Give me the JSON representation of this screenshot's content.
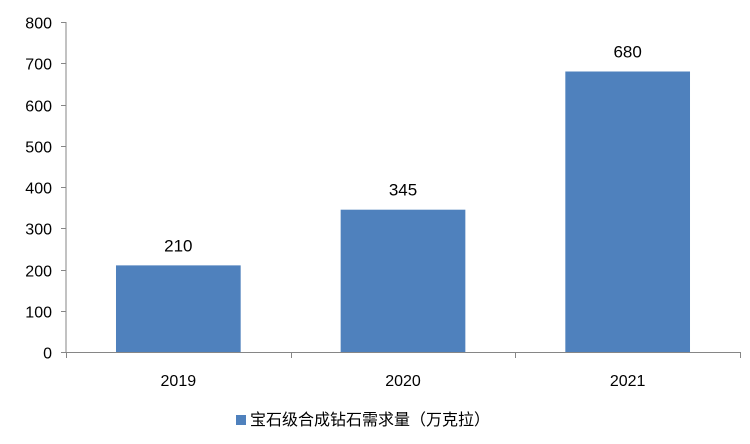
{
  "chart_data": {
    "type": "bar",
    "categories": [
      "2019",
      "2020",
      "2021"
    ],
    "series": [
      {
        "name": "宝石级合成钻石需求量（万克拉）",
        "values": [
          210,
          345,
          680
        ],
        "color": "#4F81BD"
      }
    ],
    "data_labels": [
      "210",
      "345",
      "680"
    ],
    "ylim": [
      0,
      800
    ],
    "yticks": [
      0,
      100,
      200,
      300,
      400,
      500,
      600,
      700,
      800
    ],
    "title": "",
    "xlabel": "",
    "ylabel": "",
    "grid": false,
    "legend_position": "bottom-center",
    "colors": {
      "bar": "#4F81BD",
      "axis": "#868686",
      "text": "#000000"
    }
  }
}
